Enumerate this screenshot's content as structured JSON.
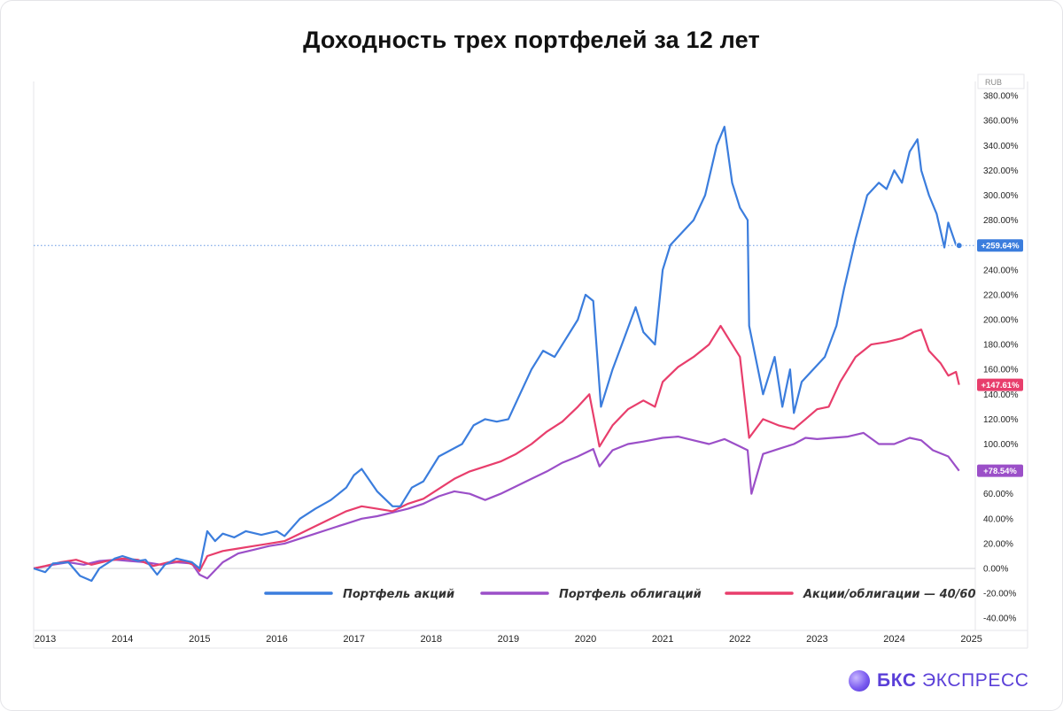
{
  "title": "Доходность трех портфелей за 12 лет",
  "brand": {
    "bold": "БКС",
    "rest": " ЭКСПРЕСС"
  },
  "colors": {
    "stocks": "#3b7ddd",
    "bonds": "#9b4fc8",
    "mix": "#e83e6c"
  },
  "chart_data": {
    "type": "line",
    "title": "Доходность трех портфелей за 12 лет",
    "xlabel": "",
    "ylabel": "",
    "xlim": [
      2012.85,
      2025.05
    ],
    "ylim": [
      -45,
      390
    ],
    "x_ticks": [
      "2013",
      "2014",
      "2015",
      "2016",
      "2017",
      "2018",
      "2019",
      "2020",
      "2021",
      "2022",
      "2023",
      "2024",
      "2025"
    ],
    "y_ticks": [
      "380.00%",
      "360.00%",
      "340.00%",
      "320.00%",
      "300.00%",
      "280.00%",
      "260.00%",
      "240.00%",
      "220.00%",
      "200.00%",
      "180.00%",
      "160.00%",
      "140.00%",
      "120.00%",
      "100.00%",
      "80.00%",
      "60.00%",
      "40.00%",
      "20.00%",
      "0.00%",
      "-20.00%",
      "-40.00%"
    ],
    "axis_corner_label": "RUB",
    "legend": [
      "Портфель акций",
      "Портфель облигаций",
      "Акции/облигации — 40/60"
    ],
    "end_labels": [
      "+259.64%",
      "+147.61%",
      "+78.54%"
    ],
    "series": [
      {
        "name": "Портфель акций",
        "color": "#3b7ddd",
        "points": [
          [
            2012.85,
            0
          ],
          [
            2013.0,
            -3
          ],
          [
            2013.1,
            4
          ],
          [
            2013.3,
            5
          ],
          [
            2013.45,
            -6
          ],
          [
            2013.6,
            -10
          ],
          [
            2013.7,
            0
          ],
          [
            2013.9,
            8
          ],
          [
            2014.0,
            10
          ],
          [
            2014.2,
            6
          ],
          [
            2014.3,
            7
          ],
          [
            2014.45,
            -5
          ],
          [
            2014.55,
            3
          ],
          [
            2014.7,
            8
          ],
          [
            2014.9,
            5
          ],
          [
            2015.0,
            0
          ],
          [
            2015.1,
            30
          ],
          [
            2015.2,
            22
          ],
          [
            2015.3,
            28
          ],
          [
            2015.45,
            25
          ],
          [
            2015.6,
            30
          ],
          [
            2015.8,
            27
          ],
          [
            2016.0,
            30
          ],
          [
            2016.1,
            26
          ],
          [
            2016.3,
            40
          ],
          [
            2016.5,
            48
          ],
          [
            2016.7,
            55
          ],
          [
            2016.9,
            65
          ],
          [
            2017.0,
            75
          ],
          [
            2017.1,
            80
          ],
          [
            2017.3,
            62
          ],
          [
            2017.5,
            50
          ],
          [
            2017.6,
            50
          ],
          [
            2017.75,
            65
          ],
          [
            2017.9,
            70
          ],
          [
            2018.1,
            90
          ],
          [
            2018.25,
            95
          ],
          [
            2018.4,
            100
          ],
          [
            2018.55,
            115
          ],
          [
            2018.7,
            120
          ],
          [
            2018.85,
            118
          ],
          [
            2019.0,
            120
          ],
          [
            2019.15,
            140
          ],
          [
            2019.3,
            160
          ],
          [
            2019.45,
            175
          ],
          [
            2019.6,
            170
          ],
          [
            2019.75,
            185
          ],
          [
            2019.9,
            200
          ],
          [
            2020.0,
            220
          ],
          [
            2020.1,
            215
          ],
          [
            2020.2,
            130
          ],
          [
            2020.35,
            160
          ],
          [
            2020.5,
            185
          ],
          [
            2020.65,
            210
          ],
          [
            2020.75,
            190
          ],
          [
            2020.9,
            180
          ],
          [
            2021.0,
            240
          ],
          [
            2021.1,
            260
          ],
          [
            2021.25,
            270
          ],
          [
            2021.4,
            280
          ],
          [
            2021.55,
            300
          ],
          [
            2021.7,
            340
          ],
          [
            2021.8,
            355
          ],
          [
            2021.9,
            310
          ],
          [
            2022.0,
            290
          ],
          [
            2022.1,
            280
          ],
          [
            2022.12,
            195
          ],
          [
            2022.3,
            140
          ],
          [
            2022.45,
            170
          ],
          [
            2022.55,
            130
          ],
          [
            2022.65,
            160
          ],
          [
            2022.7,
            125
          ],
          [
            2022.8,
            150
          ],
          [
            2022.95,
            160
          ],
          [
            2023.1,
            170
          ],
          [
            2023.25,
            195
          ],
          [
            2023.35,
            225
          ],
          [
            2023.5,
            265
          ],
          [
            2023.65,
            300
          ],
          [
            2023.8,
            310
          ],
          [
            2023.9,
            305
          ],
          [
            2024.0,
            320
          ],
          [
            2024.1,
            310
          ],
          [
            2024.2,
            335
          ],
          [
            2024.3,
            345
          ],
          [
            2024.35,
            320
          ],
          [
            2024.45,
            300
          ],
          [
            2024.55,
            285
          ],
          [
            2024.65,
            258
          ],
          [
            2024.7,
            278
          ],
          [
            2024.8,
            260
          ],
          [
            2024.84,
            259.64
          ]
        ]
      },
      {
        "name": "Акции/облигации — 40/60",
        "color": "#e83e6c",
        "points": [
          [
            2012.85,
            0
          ],
          [
            2013.0,
            2
          ],
          [
            2013.2,
            5
          ],
          [
            2013.4,
            7
          ],
          [
            2013.6,
            3
          ],
          [
            2013.8,
            6
          ],
          [
            2014.0,
            8
          ],
          [
            2014.2,
            7
          ],
          [
            2014.4,
            2
          ],
          [
            2014.6,
            5
          ],
          [
            2014.8,
            6
          ],
          [
            2014.95,
            2
          ],
          [
            2015.0,
            -2
          ],
          [
            2015.1,
            10
          ],
          [
            2015.3,
            14
          ],
          [
            2015.5,
            16
          ],
          [
            2015.7,
            18
          ],
          [
            2015.9,
            20
          ],
          [
            2016.1,
            22
          ],
          [
            2016.3,
            28
          ],
          [
            2016.5,
            34
          ],
          [
            2016.7,
            40
          ],
          [
            2016.9,
            46
          ],
          [
            2017.1,
            50
          ],
          [
            2017.3,
            48
          ],
          [
            2017.5,
            46
          ],
          [
            2017.7,
            52
          ],
          [
            2017.9,
            56
          ],
          [
            2018.1,
            64
          ],
          [
            2018.3,
            72
          ],
          [
            2018.5,
            78
          ],
          [
            2018.7,
            82
          ],
          [
            2018.9,
            86
          ],
          [
            2019.1,
            92
          ],
          [
            2019.3,
            100
          ],
          [
            2019.5,
            110
          ],
          [
            2019.7,
            118
          ],
          [
            2019.9,
            130
          ],
          [
            2020.05,
            140
          ],
          [
            2020.18,
            98
          ],
          [
            2020.35,
            115
          ],
          [
            2020.55,
            128
          ],
          [
            2020.75,
            135
          ],
          [
            2020.9,
            130
          ],
          [
            2021.0,
            150
          ],
          [
            2021.2,
            162
          ],
          [
            2021.4,
            170
          ],
          [
            2021.6,
            180
          ],
          [
            2021.75,
            195
          ],
          [
            2021.85,
            185
          ],
          [
            2022.0,
            170
          ],
          [
            2022.12,
            105
          ],
          [
            2022.3,
            120
          ],
          [
            2022.5,
            115
          ],
          [
            2022.7,
            112
          ],
          [
            2022.85,
            120
          ],
          [
            2023.0,
            128
          ],
          [
            2023.15,
            130
          ],
          [
            2023.3,
            150
          ],
          [
            2023.5,
            170
          ],
          [
            2023.7,
            180
          ],
          [
            2023.9,
            182
          ],
          [
            2024.1,
            185
          ],
          [
            2024.25,
            190
          ],
          [
            2024.35,
            192
          ],
          [
            2024.45,
            175
          ],
          [
            2024.6,
            165
          ],
          [
            2024.7,
            155
          ],
          [
            2024.8,
            158
          ],
          [
            2024.84,
            147.61
          ]
        ]
      },
      {
        "name": "Портфель облигаций",
        "color": "#9b4fc8",
        "points": [
          [
            2012.85,
            0
          ],
          [
            2013.1,
            3
          ],
          [
            2013.3,
            5
          ],
          [
            2013.5,
            3
          ],
          [
            2013.7,
            6
          ],
          [
            2013.9,
            7
          ],
          [
            2014.1,
            6
          ],
          [
            2014.3,
            5
          ],
          [
            2014.5,
            3
          ],
          [
            2014.7,
            5
          ],
          [
            2014.9,
            4
          ],
          [
            2015.0,
            -5
          ],
          [
            2015.1,
            -8
          ],
          [
            2015.3,
            5
          ],
          [
            2015.5,
            12
          ],
          [
            2015.7,
            15
          ],
          [
            2015.9,
            18
          ],
          [
            2016.1,
            20
          ],
          [
            2016.3,
            24
          ],
          [
            2016.5,
            28
          ],
          [
            2016.7,
            32
          ],
          [
            2016.9,
            36
          ],
          [
            2017.1,
            40
          ],
          [
            2017.3,
            42
          ],
          [
            2017.5,
            45
          ],
          [
            2017.7,
            48
          ],
          [
            2017.9,
            52
          ],
          [
            2018.1,
            58
          ],
          [
            2018.3,
            62
          ],
          [
            2018.5,
            60
          ],
          [
            2018.7,
            55
          ],
          [
            2018.9,
            60
          ],
          [
            2019.1,
            66
          ],
          [
            2019.3,
            72
          ],
          [
            2019.5,
            78
          ],
          [
            2019.7,
            85
          ],
          [
            2019.9,
            90
          ],
          [
            2020.1,
            96
          ],
          [
            2020.18,
            82
          ],
          [
            2020.35,
            95
          ],
          [
            2020.55,
            100
          ],
          [
            2020.75,
            102
          ],
          [
            2021.0,
            105
          ],
          [
            2021.2,
            106
          ],
          [
            2021.4,
            103
          ],
          [
            2021.6,
            100
          ],
          [
            2021.8,
            104
          ],
          [
            2022.0,
            98
          ],
          [
            2022.1,
            95
          ],
          [
            2022.15,
            60
          ],
          [
            2022.3,
            92
          ],
          [
            2022.5,
            96
          ],
          [
            2022.7,
            100
          ],
          [
            2022.85,
            105
          ],
          [
            2023.0,
            104
          ],
          [
            2023.2,
            105
          ],
          [
            2023.4,
            106
          ],
          [
            2023.6,
            109
          ],
          [
            2023.8,
            100
          ],
          [
            2024.0,
            100
          ],
          [
            2024.2,
            105
          ],
          [
            2024.35,
            103
          ],
          [
            2024.5,
            95
          ],
          [
            2024.7,
            90
          ],
          [
            2024.84,
            78.54
          ]
        ]
      }
    ]
  }
}
